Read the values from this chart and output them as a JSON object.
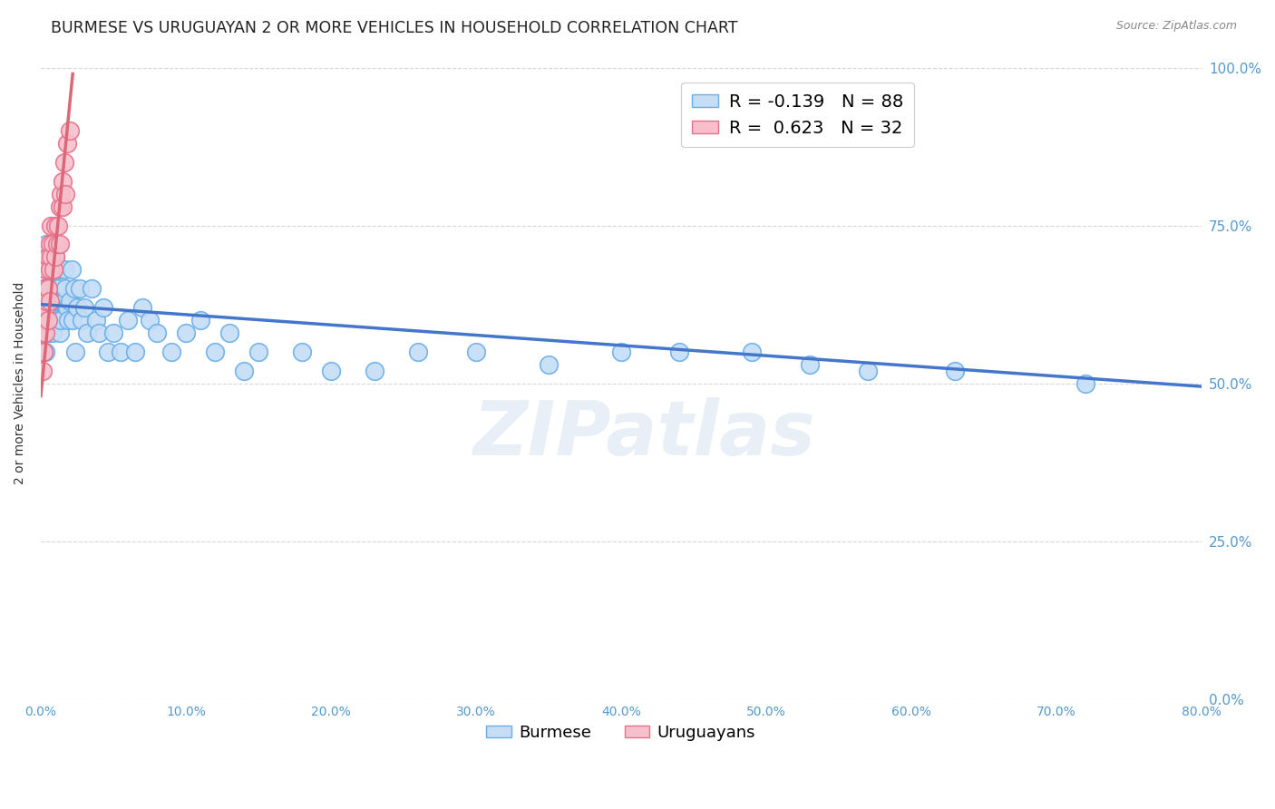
{
  "title": "BURMESE VS URUGUAYAN 2 OR MORE VEHICLES IN HOUSEHOLD CORRELATION CHART",
  "source": "Source: ZipAtlas.com",
  "ylabel_label": "2 or more Vehicles in Household",
  "legend_burmese": "Burmese",
  "legend_uruguayans": "Uruguayans",
  "R_burmese": -0.139,
  "N_burmese": 88,
  "R_uruguayan": 0.623,
  "N_uruguayan": 32,
  "xlim": [
    0.0,
    0.8
  ],
  "ylim": [
    0.0,
    1.0
  ],
  "burmese_color": "#c5ddf5",
  "uruguayan_color": "#f5c0cc",
  "burmese_edge_color": "#6aaee8",
  "uruguayan_edge_color": "#e8708a",
  "burmese_line_color": "#4477cc",
  "uruguayan_line_color": "#dd6677",
  "watermark": "ZIPatlas",
  "title_fontsize": 12.5,
  "axis_label_fontsize": 10,
  "tick_fontsize": 10,
  "legend_fontsize": 13,
  "source_fontsize": 9,
  "burmese_x": [
    0.001,
    0.001,
    0.002,
    0.002,
    0.002,
    0.003,
    0.003,
    0.003,
    0.003,
    0.004,
    0.004,
    0.004,
    0.004,
    0.005,
    0.005,
    0.005,
    0.005,
    0.006,
    0.006,
    0.006,
    0.006,
    0.007,
    0.007,
    0.007,
    0.008,
    0.008,
    0.008,
    0.009,
    0.009,
    0.01,
    0.01,
    0.01,
    0.011,
    0.011,
    0.012,
    0.012,
    0.013,
    0.013,
    0.014,
    0.015,
    0.015,
    0.016,
    0.016,
    0.017,
    0.018,
    0.019,
    0.02,
    0.021,
    0.022,
    0.023,
    0.024,
    0.025,
    0.027,
    0.028,
    0.03,
    0.032,
    0.035,
    0.038,
    0.04,
    0.043,
    0.046,
    0.05,
    0.055,
    0.06,
    0.065,
    0.07,
    0.075,
    0.08,
    0.09,
    0.1,
    0.11,
    0.12,
    0.13,
    0.14,
    0.15,
    0.18,
    0.2,
    0.23,
    0.26,
    0.3,
    0.35,
    0.4,
    0.44,
    0.49,
    0.53,
    0.57,
    0.63,
    0.72
  ],
  "burmese_y": [
    0.62,
    0.58,
    0.65,
    0.6,
    0.55,
    0.68,
    0.62,
    0.58,
    0.55,
    0.72,
    0.65,
    0.6,
    0.58,
    0.7,
    0.65,
    0.62,
    0.58,
    0.68,
    0.65,
    0.62,
    0.58,
    0.7,
    0.65,
    0.6,
    0.68,
    0.63,
    0.58,
    0.65,
    0.6,
    0.7,
    0.65,
    0.62,
    0.68,
    0.63,
    0.65,
    0.6,
    0.63,
    0.58,
    0.6,
    0.68,
    0.63,
    0.68,
    0.63,
    0.65,
    0.62,
    0.6,
    0.63,
    0.68,
    0.6,
    0.65,
    0.55,
    0.62,
    0.65,
    0.6,
    0.62,
    0.58,
    0.65,
    0.6,
    0.58,
    0.62,
    0.55,
    0.58,
    0.55,
    0.6,
    0.55,
    0.62,
    0.6,
    0.58,
    0.55,
    0.58,
    0.6,
    0.55,
    0.58,
    0.52,
    0.55,
    0.55,
    0.52,
    0.52,
    0.55,
    0.55,
    0.53,
    0.55,
    0.55,
    0.55,
    0.53,
    0.52,
    0.52,
    0.5
  ],
  "uruguayan_x": [
    0.001,
    0.001,
    0.002,
    0.002,
    0.003,
    0.003,
    0.003,
    0.004,
    0.004,
    0.005,
    0.005,
    0.005,
    0.006,
    0.006,
    0.006,
    0.007,
    0.007,
    0.008,
    0.009,
    0.01,
    0.01,
    0.011,
    0.012,
    0.013,
    0.013,
    0.014,
    0.015,
    0.015,
    0.016,
    0.017,
    0.018,
    0.02
  ],
  "uruguayan_y": [
    0.58,
    0.52,
    0.6,
    0.55,
    0.65,
    0.62,
    0.58,
    0.68,
    0.63,
    0.7,
    0.65,
    0.6,
    0.72,
    0.68,
    0.63,
    0.75,
    0.7,
    0.72,
    0.68,
    0.75,
    0.7,
    0.72,
    0.75,
    0.78,
    0.72,
    0.8,
    0.82,
    0.78,
    0.85,
    0.8,
    0.88,
    0.9
  ],
  "burmese_line_x": [
    0.0,
    0.8
  ],
  "burmese_line_y": [
    0.625,
    0.495
  ],
  "uruguayan_line_x": [
    0.0,
    0.022
  ],
  "uruguayan_line_y": [
    0.48,
    0.99
  ]
}
